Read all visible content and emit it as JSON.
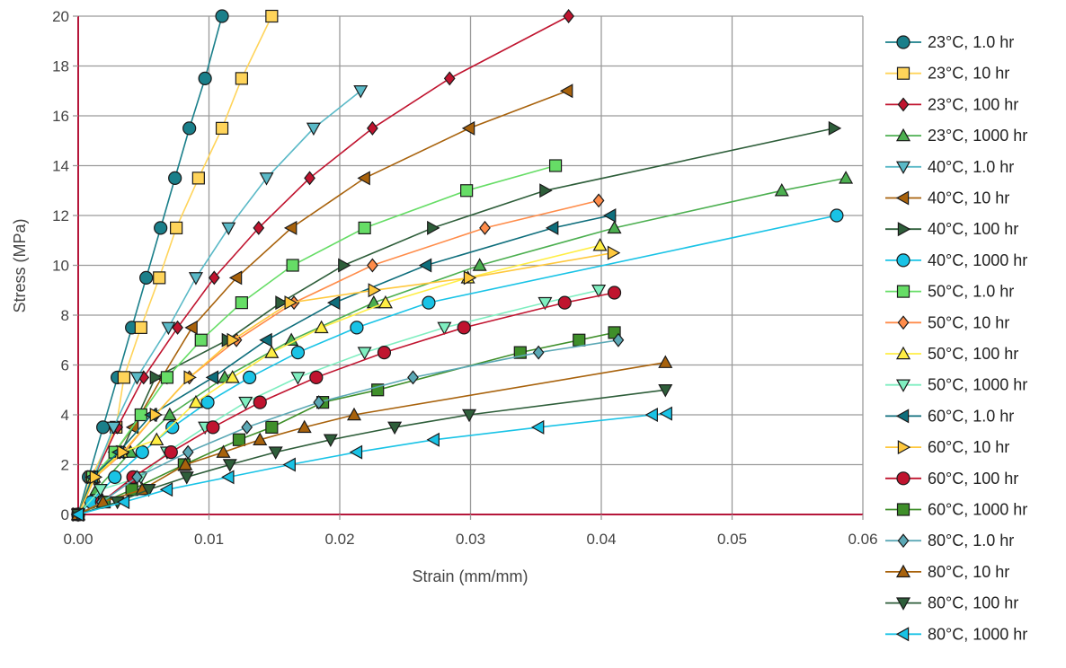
{
  "chart_data": {
    "type": "line",
    "title": "",
    "xlabel": "Strain (mm/mm)",
    "ylabel": "Stress (MPa)",
    "xlim": [
      0,
      0.06
    ],
    "ylim": [
      0,
      20
    ],
    "x_ticks": [
      "0.00",
      "0.01",
      "0.02",
      "0.03",
      "0.04",
      "0.05",
      "0.06"
    ],
    "y_ticks": [
      "0",
      "2",
      "4",
      "6",
      "8",
      "10",
      "12",
      "14",
      "16",
      "18",
      "20"
    ],
    "grid": true,
    "legend_position": "right",
    "series": [
      {
        "name": "23°C, 1.0 hr",
        "color": "#1a7f8a",
        "marker": "circle",
        "points": [
          [
            0,
            0
          ],
          [
            0.0008,
            1.5
          ],
          [
            0.0019,
            3.5
          ],
          [
            0.003,
            5.5
          ],
          [
            0.0041,
            7.5
          ],
          [
            0.0052,
            9.5
          ],
          [
            0.0063,
            11.5
          ],
          [
            0.0074,
            13.5
          ],
          [
            0.0085,
            15.5
          ],
          [
            0.0097,
            17.5
          ],
          [
            0.011,
            20.0
          ]
        ]
      },
      {
        "name": "23°C, 10 hr",
        "color": "#ffd45a",
        "marker": "square",
        "points": [
          [
            0,
            0
          ],
          [
            0.001,
            1.5
          ],
          [
            0.0029,
            3.5
          ],
          [
            0.0035,
            5.5
          ],
          [
            0.0048,
            7.5
          ],
          [
            0.0062,
            9.5
          ],
          [
            0.0075,
            11.5
          ],
          [
            0.0092,
            13.5
          ],
          [
            0.011,
            15.5
          ],
          [
            0.0125,
            17.5
          ],
          [
            0.0148,
            20.0
          ]
        ]
      },
      {
        "name": "23°C, 100 hr",
        "color": "#c0142f",
        "marker": "diamond",
        "points": [
          [
            0,
            0
          ],
          [
            0.0012,
            1.5
          ],
          [
            0.003,
            3.5
          ],
          [
            0.005,
            5.5
          ],
          [
            0.0076,
            7.5
          ],
          [
            0.0104,
            9.5
          ],
          [
            0.0138,
            11.5
          ],
          [
            0.0177,
            13.5
          ],
          [
            0.0225,
            15.5
          ],
          [
            0.0284,
            17.5
          ],
          [
            0.0375,
            20.0
          ]
        ]
      },
      {
        "name": "23°C, 1000 hr",
        "color": "#4caf50",
        "marker": "triangle-up",
        "points": [
          [
            0,
            0
          ],
          [
            0.0014,
            1.0
          ],
          [
            0.004,
            2.5
          ],
          [
            0.007,
            4.0
          ],
          [
            0.0112,
            5.5
          ],
          [
            0.0163,
            7.0
          ],
          [
            0.0226,
            8.5
          ],
          [
            0.0307,
            10.0
          ],
          [
            0.041,
            11.5
          ],
          [
            0.0538,
            13.0
          ],
          [
            0.0587,
            13.5
          ]
        ]
      },
      {
        "name": "40°C, 1.0 hr",
        "color": "#5ab9c7",
        "marker": "triangle-down",
        "points": [
          [
            0,
            0
          ],
          [
            0.0012,
            1.5
          ],
          [
            0.0027,
            3.5
          ],
          [
            0.0045,
            5.5
          ],
          [
            0.0069,
            7.5
          ],
          [
            0.009,
            9.5
          ],
          [
            0.0115,
            11.5
          ],
          [
            0.0144,
            13.5
          ],
          [
            0.018,
            15.5
          ],
          [
            0.0216,
            17.0
          ]
        ]
      },
      {
        "name": "40°C, 10 hr",
        "color": "#a8620c",
        "marker": "triangle-left",
        "points": [
          [
            0,
            0
          ],
          [
            0.0012,
            1.5
          ],
          [
            0.0028,
            2.5
          ],
          [
            0.0042,
            3.5
          ],
          [
            0.0064,
            5.5
          ],
          [
            0.0087,
            7.5
          ],
          [
            0.0121,
            9.5
          ],
          [
            0.0163,
            11.5
          ],
          [
            0.0219,
            13.5
          ],
          [
            0.0299,
            15.5
          ],
          [
            0.0374,
            17.0
          ]
        ]
      },
      {
        "name": "40°C, 100 hr",
        "color": "#2e5e3a",
        "marker": "triangle-right",
        "points": [
          [
            0,
            0
          ],
          [
            0.0011,
            1.5
          ],
          [
            0.0033,
            2.5
          ],
          [
            0.0059,
            5.5
          ],
          [
            0.0114,
            7.0
          ],
          [
            0.0155,
            8.5
          ],
          [
            0.0203,
            10.0
          ],
          [
            0.0271,
            11.5
          ],
          [
            0.0357,
            13.0
          ],
          [
            0.0578,
            15.5
          ]
        ]
      },
      {
        "name": "40°C, 1000 hr",
        "color": "#19c3e6",
        "marker": "circle",
        "points": [
          [
            0,
            0
          ],
          [
            0.001,
            0.5
          ],
          [
            0.0028,
            1.5
          ],
          [
            0.0049,
            2.5
          ],
          [
            0.0072,
            3.5
          ],
          [
            0.0099,
            4.5
          ],
          [
            0.0131,
            5.5
          ],
          [
            0.0168,
            6.5
          ],
          [
            0.0213,
            7.5
          ],
          [
            0.0268,
            8.5
          ],
          [
            0.058,
            12.0
          ]
        ]
      },
      {
        "name": "50°C, 1.0 hr",
        "color": "#66dd66",
        "marker": "square",
        "points": [
          [
            0,
            0
          ],
          [
            0.0011,
            1.5
          ],
          [
            0.0028,
            2.5
          ],
          [
            0.0048,
            4.0
          ],
          [
            0.0068,
            5.5
          ],
          [
            0.0094,
            7.0
          ],
          [
            0.0125,
            8.5
          ],
          [
            0.0164,
            10.0
          ],
          [
            0.0219,
            11.5
          ],
          [
            0.0297,
            13.0
          ],
          [
            0.0365,
            14.0
          ]
        ]
      },
      {
        "name": "50°C, 10 hr",
        "color": "#ff8c4a",
        "marker": "diamond",
        "points": [
          [
            0,
            0
          ],
          [
            0.0013,
            1.5
          ],
          [
            0.0035,
            2.5
          ],
          [
            0.0059,
            4.0
          ],
          [
            0.0085,
            5.5
          ],
          [
            0.0121,
            7.0
          ],
          [
            0.0165,
            8.5
          ],
          [
            0.0225,
            10.0
          ],
          [
            0.0311,
            11.5
          ],
          [
            0.0398,
            12.6
          ]
        ]
      },
      {
        "name": "50°C, 100 hr",
        "color": "#ffee44",
        "marker": "triangle-up",
        "points": [
          [
            0,
            0
          ],
          [
            0.0012,
            1.5
          ],
          [
            0.0033,
            2.5
          ],
          [
            0.006,
            3.0
          ],
          [
            0.009,
            4.5
          ],
          [
            0.0118,
            5.5
          ],
          [
            0.0148,
            6.5
          ],
          [
            0.0186,
            7.5
          ],
          [
            0.0235,
            8.5
          ],
          [
            0.0298,
            9.5
          ],
          [
            0.0399,
            10.8
          ]
        ]
      },
      {
        "name": "50°C, 1000 hr",
        "color": "#7feec0",
        "marker": "triangle-down",
        "points": [
          [
            0,
            0
          ],
          [
            0.0017,
            1.0
          ],
          [
            0.0048,
            1.5
          ],
          [
            0.0068,
            2.5
          ],
          [
            0.0097,
            3.5
          ],
          [
            0.0128,
            4.5
          ],
          [
            0.0168,
            5.5
          ],
          [
            0.0219,
            6.5
          ],
          [
            0.028,
            7.5
          ],
          [
            0.0357,
            8.5
          ],
          [
            0.0398,
            9.0
          ]
        ]
      },
      {
        "name": "60°C, 1.0 hr",
        "color": "#0e6e7c",
        "marker": "triangle-left",
        "points": [
          [
            0,
            0
          ],
          [
            0.0011,
            1.5
          ],
          [
            0.0031,
            2.5
          ],
          [
            0.0056,
            4.0
          ],
          [
            0.0103,
            5.5
          ],
          [
            0.0144,
            7.0
          ],
          [
            0.0196,
            8.5
          ],
          [
            0.0266,
            10.0
          ],
          [
            0.0363,
            11.5
          ],
          [
            0.0407,
            12.0
          ]
        ]
      },
      {
        "name": "60°C, 10 hr",
        "color": "#ffc83d",
        "marker": "triangle-right",
        "points": [
          [
            0,
            0
          ],
          [
            0.0013,
            1.5
          ],
          [
            0.0034,
            2.5
          ],
          [
            0.0059,
            4.0
          ],
          [
            0.0085,
            5.5
          ],
          [
            0.0118,
            7.0
          ],
          [
            0.0162,
            8.5
          ],
          [
            0.0226,
            9.0
          ],
          [
            0.0299,
            9.5
          ],
          [
            0.0409,
            10.5
          ]
        ]
      },
      {
        "name": "60°C, 100 hr",
        "color": "#c0142f",
        "marker": "circle",
        "points": [
          [
            0,
            0
          ],
          [
            0.0018,
            0.5
          ],
          [
            0.0042,
            1.5
          ],
          [
            0.0071,
            2.5
          ],
          [
            0.0103,
            3.5
          ],
          [
            0.0139,
            4.5
          ],
          [
            0.0182,
            5.5
          ],
          [
            0.0234,
            6.5
          ],
          [
            0.0295,
            7.5
          ],
          [
            0.0372,
            8.5
          ],
          [
            0.041,
            8.9
          ]
        ]
      },
      {
        "name": "60°C, 1000 hr",
        "color": "#3f8f2a",
        "marker": "square",
        "points": [
          [
            0,
            0
          ],
          [
            0.002,
            0.5
          ],
          [
            0.0041,
            1.0
          ],
          [
            0.0081,
            2.0
          ],
          [
            0.0123,
            3.0
          ],
          [
            0.0148,
            3.5
          ],
          [
            0.0187,
            4.5
          ],
          [
            0.0229,
            5.0
          ],
          [
            0.0338,
            6.5
          ],
          [
            0.0383,
            7.0
          ],
          [
            0.041,
            7.3
          ]
        ]
      },
      {
        "name": "80°C, 1.0 hr",
        "color": "#5ba8b5",
        "marker": "diamond",
        "points": [
          [
            0,
            0
          ],
          [
            0.0018,
            0.5
          ],
          [
            0.0045,
            1.5
          ],
          [
            0.0084,
            2.5
          ],
          [
            0.0129,
            3.5
          ],
          [
            0.0184,
            4.5
          ],
          [
            0.0256,
            5.5
          ],
          [
            0.0352,
            6.5
          ],
          [
            0.0413,
            7.0
          ]
        ]
      },
      {
        "name": "80°C, 10 hr",
        "color": "#a8620c",
        "marker": "triangle-up",
        "points": [
          [
            0,
            0
          ],
          [
            0.0019,
            0.5
          ],
          [
            0.0049,
            1.0
          ],
          [
            0.0082,
            2.0
          ],
          [
            0.0111,
            2.5
          ],
          [
            0.0139,
            3.0
          ],
          [
            0.0173,
            3.5
          ],
          [
            0.0211,
            4.0
          ],
          [
            0.0449,
            6.1
          ]
        ]
      },
      {
        "name": "80°C, 100 hr",
        "color": "#2e5e3a",
        "marker": "triangle-down",
        "points": [
          [
            0,
            0
          ],
          [
            0.003,
            0.5
          ],
          [
            0.0054,
            1.0
          ],
          [
            0.0083,
            1.5
          ],
          [
            0.0116,
            2.0
          ],
          [
            0.0151,
            2.5
          ],
          [
            0.0193,
            3.0
          ],
          [
            0.0242,
            3.5
          ],
          [
            0.0299,
            4.0
          ],
          [
            0.0449,
            5.0
          ]
        ]
      },
      {
        "name": "80°C, 1000 hr",
        "color": "#19c3e6",
        "marker": "triangle-left",
        "points": [
          [
            0,
            0
          ],
          [
            0.0035,
            0.5
          ],
          [
            0.0068,
            1.0
          ],
          [
            0.0115,
            1.5
          ],
          [
            0.0162,
            2.0
          ],
          [
            0.0213,
            2.5
          ],
          [
            0.0272,
            3.0
          ],
          [
            0.0352,
            3.5
          ],
          [
            0.0439,
            4.0
          ],
          [
            0.045,
            4.05
          ]
        ]
      }
    ]
  }
}
